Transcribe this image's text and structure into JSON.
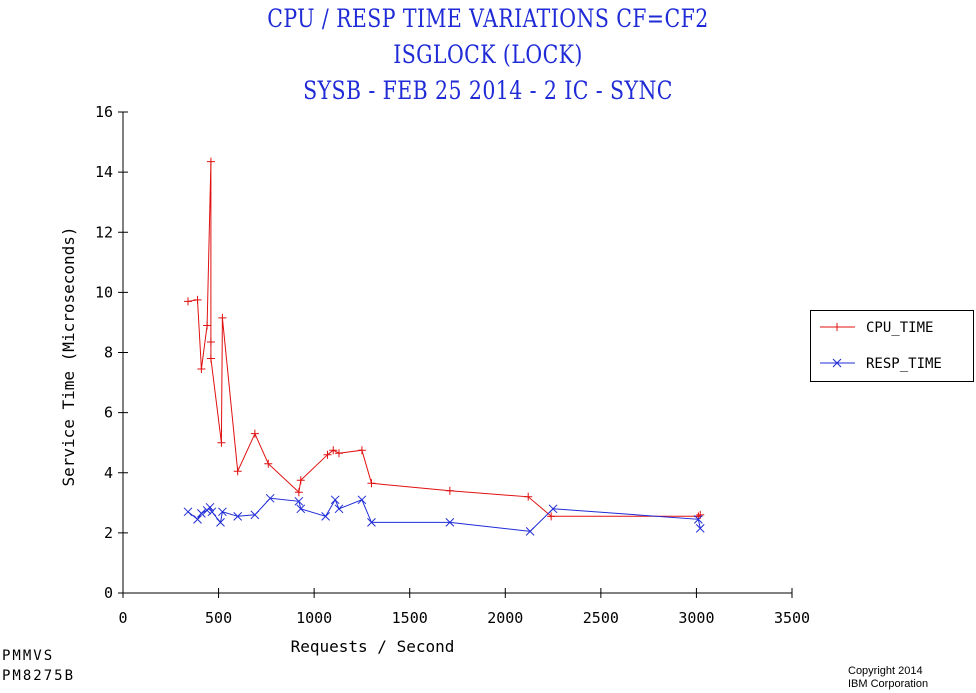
{
  "titles": [
    "CPU / RESP TIME VARIATIONS CF=CF2",
    "ISGLOCK (LOCK)",
    "SYSB - FEB 25 2014 - 2 IC  - SYNC"
  ],
  "footer": {
    "line1": "PMMVS",
    "line2": "PM8275B"
  },
  "copyright": {
    "line1": "Copyright 2014",
    "line2": "IBM Corporation"
  },
  "chart_data": {
    "type": "line",
    "title": "CPU / RESP TIME VARIATIONS CF=CF2 ISGLOCK (LOCK) SYSB - FEB 25 2014 - 2 IC  - SYNC",
    "xlabel": "Requests / Second",
    "ylabel": "Service Time (Microseconds)",
    "xlim": [
      0,
      3500
    ],
    "ylim": [
      0,
      16
    ],
    "xticks": [
      0,
      500,
      1000,
      1500,
      2000,
      2500,
      3000,
      3500
    ],
    "yticks": [
      0,
      2,
      4,
      6,
      8,
      10,
      12,
      14,
      16
    ],
    "legend_position": "right",
    "series": [
      {
        "name": "CPU_TIME",
        "color": "#e01010",
        "marker": "plus",
        "points": [
          [
            340,
            9.7
          ],
          [
            390,
            9.75
          ],
          [
            410,
            7.45
          ],
          [
            440,
            8.9
          ],
          [
            460,
            14.35
          ],
          [
            460,
            8.35
          ],
          [
            460,
            7.8
          ],
          [
            515,
            5.0
          ],
          [
            520,
            9.15
          ],
          [
            600,
            4.05
          ],
          [
            690,
            5.3
          ],
          [
            760,
            4.3
          ],
          [
            920,
            3.35
          ],
          [
            930,
            3.75
          ],
          [
            1070,
            4.6
          ],
          [
            1100,
            4.75
          ],
          [
            1130,
            4.65
          ],
          [
            1250,
            4.75
          ],
          [
            1300,
            3.65
          ],
          [
            1710,
            3.4
          ],
          [
            2120,
            3.2
          ],
          [
            2240,
            2.55
          ],
          [
            3010,
            2.55
          ],
          [
            3020,
            2.6
          ]
        ]
      },
      {
        "name": "RESP_TIME",
        "color": "#1f2bd6",
        "marker": "x",
        "points": [
          [
            340,
            2.7
          ],
          [
            390,
            2.45
          ],
          [
            410,
            2.65
          ],
          [
            440,
            2.75
          ],
          [
            455,
            2.85
          ],
          [
            465,
            2.7
          ],
          [
            510,
            2.35
          ],
          [
            520,
            2.7
          ],
          [
            600,
            2.55
          ],
          [
            690,
            2.6
          ],
          [
            770,
            3.15
          ],
          [
            920,
            3.05
          ],
          [
            930,
            2.8
          ],
          [
            1060,
            2.55
          ],
          [
            1110,
            3.1
          ],
          [
            1130,
            2.8
          ],
          [
            1250,
            3.1
          ],
          [
            1300,
            2.35
          ],
          [
            1710,
            2.35
          ],
          [
            2130,
            2.05
          ],
          [
            2250,
            2.8
          ],
          [
            3010,
            2.45
          ],
          [
            3020,
            2.15
          ]
        ]
      }
    ]
  }
}
